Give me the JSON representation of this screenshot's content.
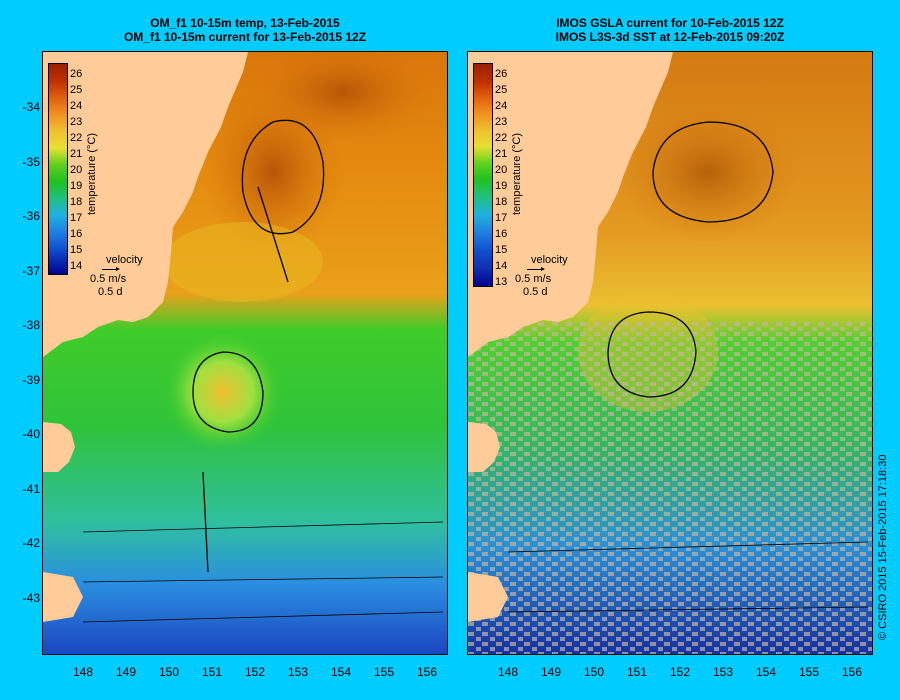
{
  "left_panel": {
    "title_line1": "OM_f1 10-15m temp, 13-Feb-2015",
    "title_line2": "OM_f1 10-15m current for 13-Feb-2015 12Z",
    "colorbar": {
      "title": "temperature (°C)",
      "ticks": [
        "26",
        "25",
        "24",
        "23",
        "22",
        "21",
        "20",
        "19",
        "18",
        "17",
        "16",
        "15",
        "14"
      ]
    },
    "velocity_legend": {
      "label": "velocity",
      "speed": "0.5 m/s",
      "time": "0.5 d"
    }
  },
  "right_panel": {
    "title_line1": "IMOS GSLA current for 10-Feb-2015 12Z",
    "title_line2": "IMOS L3S-3d SST at 12-Feb-2015 09:20Z",
    "colorbar": {
      "title": "temperature (°C)",
      "ticks": [
        "26",
        "25",
        "24",
        "23",
        "22",
        "21",
        "20",
        "19",
        "18",
        "17",
        "16",
        "15",
        "14",
        "13"
      ]
    },
    "velocity_legend": {
      "label": "velocity",
      "speed": "0.5 m/s",
      "time": "0.5 d"
    }
  },
  "y_axis": [
    "-34",
    "-35",
    "-36",
    "-37",
    "-38",
    "-39",
    "-40",
    "-41",
    "-42",
    "-43"
  ],
  "x_axis": [
    "148",
    "149",
    "150",
    "151",
    "152",
    "153",
    "154",
    "155",
    "156"
  ],
  "copyright": "© CSIRO 2015   15-Feb-2015 17:18:30",
  "colors": {
    "background": "#00ccff",
    "land": "#ffcc99",
    "cloud": "#c8b49a"
  }
}
